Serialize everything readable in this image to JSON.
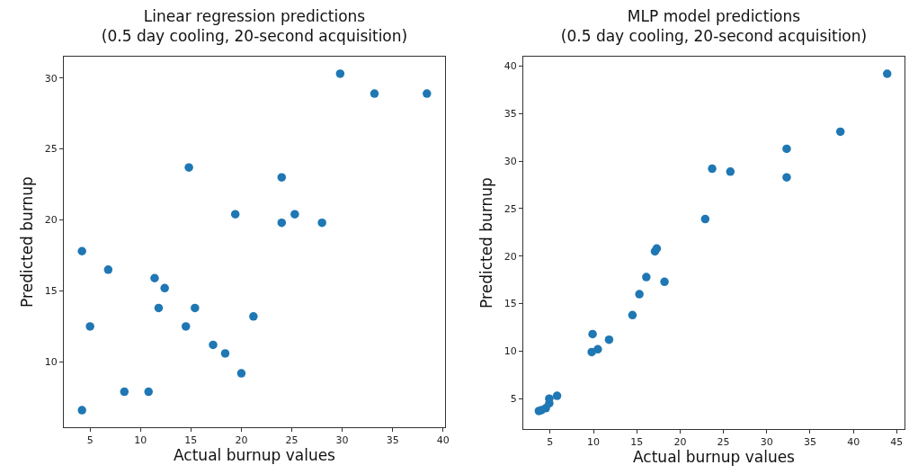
{
  "chart_data": [
    {
      "type": "scatter",
      "title": "Linear regression predictions\n(0.5 day cooling, 20-second acquisition)",
      "xlabel": "Actual burnup values",
      "ylabel": "Predicted burnup",
      "marker": "circle",
      "grid": false,
      "x": [
        4.2,
        5,
        6.8,
        8.4,
        10.8,
        4.2,
        11.4,
        12.4,
        11.8,
        14.5,
        15.4,
        14.8,
        17.2,
        18.4,
        19.4,
        20,
        21.2,
        24,
        24,
        25.3,
        28,
        29.8,
        33.2,
        38.4
      ],
      "series": [
        {
          "color": "#1f77b4",
          "values": [
            17.8,
            12.5,
            16.5,
            7.9,
            7.9,
            6.6,
            15.9,
            15.2,
            13.8,
            12.5,
            13.8,
            23.7,
            11.2,
            10.6,
            20.4,
            9.2,
            13.2,
            23,
            19.8,
            20.4,
            19.8,
            30.3,
            28.9,
            28.9
          ]
        }
      ],
      "xlim": [
        2.4,
        40.2
      ],
      "xticks": [
        5,
        10,
        15,
        20,
        25,
        30,
        35,
        40
      ],
      "ylim": [
        5.4,
        31.5
      ],
      "yticks": [
        10,
        15,
        20,
        25,
        30
      ]
    },
    {
      "type": "scatter",
      "title": "MLP model predictions\n(0.5 day cooling, 20-second acquisition)",
      "xlabel": "Actual burnup values",
      "ylabel": "Predicted burnup",
      "marker": "circle",
      "grid": false,
      "x": [
        3.7,
        4.0,
        4.5,
        4.9,
        4.9,
        5.8,
        9.8,
        10.5,
        9.9,
        11.8,
        14.5,
        15.3,
        16.1,
        18.2,
        17.1,
        17.3,
        22.9,
        23.7,
        25.8,
        32.3,
        32.3,
        38.5,
        43.9
      ],
      "series": [
        {
          "color": "#1f77b4",
          "values": [
            3.7,
            3.8,
            4.0,
            4.5,
            5.0,
            5.3,
            9.9,
            10.2,
            11.8,
            11.2,
            13.8,
            16,
            17.8,
            17.3,
            20.5,
            20.8,
            23.9,
            29.2,
            28.9,
            31.3,
            28.3,
            33.1,
            39.2
          ]
        }
      ],
      "xlim": [
        1.9,
        45.9
      ],
      "xticks": [
        5,
        10,
        15,
        20,
        25,
        30,
        35,
        40,
        45
      ],
      "ylim": [
        1.8,
        41
      ],
      "yticks": [
        5,
        10,
        15,
        20,
        25,
        30,
        35,
        40
      ]
    }
  ]
}
